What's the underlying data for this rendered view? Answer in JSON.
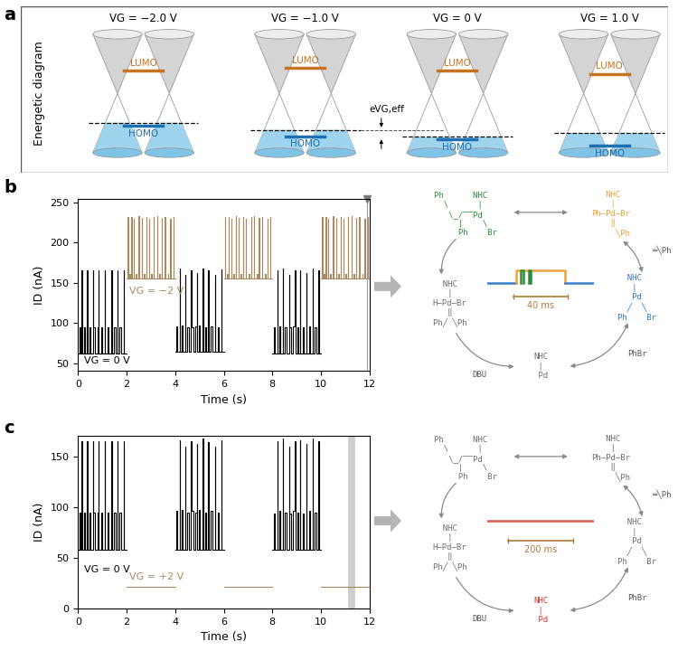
{
  "panel_labels": [
    "a",
    "b",
    "c"
  ],
  "energy_diagram": {
    "ylabel": "Energetic diagram",
    "homo_label": "HOMO",
    "lumo_label": "LUMO",
    "shift_label": "eVG,eff",
    "states": [
      {
        "label": "VG = −2.0 V",
        "fermi_level": -0.37,
        "homo": -0.41,
        "lumo": 0.29
      },
      {
        "label": "VG = −1.0 V",
        "fermi_level": -0.46,
        "homo": -0.54,
        "lumo": 0.32
      },
      {
        "label": "VG = 0 V",
        "fermi_level": -0.55,
        "homo": -0.58,
        "lumo": 0.29
      },
      {
        "label": "VG = 1.0 V",
        "fermi_level": -0.5,
        "homo": -0.66,
        "lumo": 0.25
      }
    ]
  },
  "chart_data": [
    {
      "type": "line",
      "line_style": "steps",
      "xlabel": "Time (s)",
      "ylabel": "ID (nA)",
      "xlim": [
        0,
        12
      ],
      "xticks": [
        0,
        2,
        4,
        6,
        8,
        10,
        12
      ],
      "ylim": [
        40,
        255
      ],
      "yticks": [
        50,
        100,
        150,
        200,
        250
      ],
      "series": [
        {
          "color": "#000000",
          "x": [
            0,
            0.08,
            0.12,
            0.15,
            0.16,
            0.25,
            0.28,
            0.38,
            0.39,
            0.47,
            0.52,
            0.62,
            0.63,
            0.7,
            0.8,
            0.84,
            0.85,
            0.95,
            1.0,
            1.1,
            1.11,
            1.2,
            1.26,
            1.38,
            1.39,
            1.48,
            1.54,
            1.62,
            1.63,
            1.72,
            1.78,
            1.88,
            1.89,
            2.0
          ],
          "values": [
            62,
            95,
            62,
            165,
            62,
            95,
            62,
            165,
            62,
            95,
            62,
            165,
            95,
            62,
            95,
            165,
            62,
            95,
            62,
            165,
            62,
            95,
            62,
            165,
            62,
            95,
            62,
            165,
            62,
            95,
            62,
            165,
            62,
            62
          ]
        },
        {
          "color": "#a98b62",
          "x": [
            2,
            2.05,
            2.06,
            2.12,
            2.15,
            2.2,
            2.21,
            2.3,
            2.31,
            2.38,
            2.42,
            2.5,
            2.51,
            2.62,
            2.63,
            2.7,
            2.74,
            2.8,
            2.81,
            2.92,
            2.93,
            3.02,
            3.06,
            3.12,
            3.13,
            3.25,
            3.26,
            3.35,
            3.39,
            3.45,
            3.46,
            3.58,
            3.59,
            3.7,
            3.73,
            3.8,
            3.81,
            3.92,
            3.93,
            4.0
          ],
          "values": [
            155,
            232,
            155,
            161,
            155,
            232,
            155,
            230,
            155,
            161,
            155,
            233,
            155,
            231,
            155,
            161,
            155,
            232,
            155,
            230,
            155,
            161,
            155,
            232,
            155,
            233,
            155,
            161,
            155,
            231,
            155,
            232,
            155,
            161,
            155,
            230,
            155,
            232,
            155,
            155
          ]
        },
        {
          "color": "#000000",
          "x": [
            4,
            4.06,
            4.1,
            4.18,
            4.19,
            4.27,
            4.31,
            4.4,
            4.41,
            4.5,
            4.55,
            4.66,
            4.67,
            4.74,
            4.83,
            4.9,
            4.91,
            4.98,
            5.03,
            5.14,
            5.15,
            5.23,
            5.28,
            5.36,
            5.37,
            5.47,
            5.52,
            5.64,
            5.65,
            5.74,
            5.8,
            5.9,
            5.91,
            6.0
          ],
          "values": [
            64,
            96,
            64,
            168,
            64,
            97,
            64,
            160,
            64,
            95,
            64,
            166,
            95,
            64,
            96,
            162,
            64,
            97,
            64,
            168,
            64,
            95,
            64,
            165,
            64,
            96,
            64,
            160,
            64,
            95,
            64,
            167,
            64,
            64
          ]
        },
        {
          "color": "#a98b62",
          "x": [
            6,
            6.05,
            6.06,
            6.12,
            6.15,
            6.2,
            6.21,
            6.3,
            6.31,
            6.38,
            6.42,
            6.5,
            6.51,
            6.62,
            6.63,
            6.7,
            6.74,
            6.8,
            6.81,
            6.92,
            6.93,
            7.02,
            7.06,
            7.12,
            7.13,
            7.25,
            7.26,
            7.35,
            7.39,
            7.45,
            7.46,
            7.58,
            7.59,
            7.7,
            7.73,
            7.8,
            7.81,
            7.92,
            7.93,
            8.0
          ],
          "values": [
            155,
            232,
            155,
            161,
            155,
            232,
            155,
            230,
            155,
            161,
            155,
            233,
            155,
            231,
            155,
            161,
            155,
            232,
            155,
            230,
            155,
            161,
            155,
            232,
            155,
            233,
            155,
            161,
            155,
            231,
            155,
            232,
            155,
            161,
            155,
            230,
            155,
            232,
            155,
            155
          ]
        },
        {
          "color": "#000000",
          "x": [
            8,
            8.07,
            8.11,
            8.2,
            8.21,
            8.3,
            8.34,
            8.42,
            8.43,
            8.52,
            8.57,
            8.68,
            8.69,
            8.76,
            8.85,
            8.93,
            8.94,
            9.02,
            9.07,
            9.15,
            9.16,
            9.25,
            9.3,
            9.4,
            9.41,
            9.5,
            9.55,
            9.66,
            9.67,
            9.75,
            9.81,
            9.9,
            9.91,
            10.0
          ],
          "values": [
            62,
            94,
            62,
            165,
            62,
            96,
            62,
            168,
            62,
            95,
            62,
            160,
            94,
            62,
            96,
            165,
            62,
            95,
            62,
            166,
            62,
            94,
            62,
            162,
            62,
            96,
            62,
            168,
            62,
            95,
            62,
            165,
            62,
            62
          ]
        },
        {
          "color": "#a98b62",
          "x": [
            10,
            10.05,
            10.06,
            10.12,
            10.15,
            10.2,
            10.21,
            10.3,
            10.31,
            10.38,
            10.42,
            10.5,
            10.51,
            10.62,
            10.63,
            10.7,
            10.74,
            10.8,
            10.81,
            10.92,
            10.93,
            11.02,
            11.06,
            11.12,
            11.13,
            11.25,
            11.26,
            11.35,
            11.39,
            11.45,
            11.46,
            11.58,
            11.59,
            11.7,
            11.73,
            11.8,
            11.81,
            11.92,
            11.93,
            12.0
          ],
          "values": [
            155,
            232,
            155,
            161,
            155,
            232,
            155,
            230,
            155,
            161,
            155,
            233,
            155,
            231,
            155,
            161,
            155,
            232,
            155,
            230,
            155,
            161,
            155,
            232,
            155,
            233,
            155,
            161,
            155,
            231,
            155,
            232,
            155,
            161,
            155,
            230,
            155,
            232,
            155,
            155
          ]
        }
      ],
      "annotations": [
        {
          "text": "VG = 0 V",
          "color": "#000000"
        },
        {
          "text": "VG = −2 V",
          "color": "#a98b62"
        }
      ],
      "highlight_time": 11.9
    },
    {
      "type": "line",
      "line_style": "steps",
      "xlabel": "Time (s)",
      "ylabel": "ID (nA)",
      "xlim": [
        0,
        12
      ],
      "xticks": [
        0,
        2,
        4,
        6,
        8,
        10,
        12
      ],
      "ylim": [
        0,
        170
      ],
      "yticks": [
        0,
        50,
        100,
        150
      ],
      "series": [
        {
          "color": "#000000",
          "x": [
            0,
            0.08,
            0.12,
            0.15,
            0.16,
            0.25,
            0.28,
            0.38,
            0.39,
            0.47,
            0.52,
            0.62,
            0.63,
            0.7,
            0.8,
            0.84,
            0.85,
            0.95,
            1.0,
            1.1,
            1.11,
            1.2,
            1.26,
            1.38,
            1.39,
            1.48,
            1.54,
            1.62,
            1.63,
            1.72,
            1.78,
            1.88,
            1.89,
            2.0
          ],
          "values": [
            58,
            95,
            58,
            165,
            58,
            95,
            58,
            165,
            58,
            95,
            58,
            165,
            95,
            58,
            95,
            165,
            58,
            95,
            58,
            165,
            58,
            95,
            58,
            165,
            58,
            95,
            58,
            165,
            58,
            95,
            58,
            165,
            58,
            58
          ]
        },
        {
          "color": "#a98b62",
          "x": [
            2,
            4
          ],
          "values": [
            22,
            22
          ]
        },
        {
          "color": "#000000",
          "x": [
            4,
            4.06,
            4.1,
            4.18,
            4.19,
            4.27,
            4.31,
            4.4,
            4.41,
            4.5,
            4.55,
            4.66,
            4.67,
            4.74,
            4.83,
            4.9,
            4.91,
            4.98,
            5.03,
            5.14,
            5.15,
            5.23,
            5.28,
            5.36,
            5.37,
            5.47,
            5.52,
            5.64,
            5.65,
            5.74,
            5.8,
            5.9,
            5.91,
            6.0
          ],
          "values": [
            58,
            96,
            58,
            166,
            58,
            97,
            58,
            160,
            58,
            95,
            58,
            165,
            96,
            58,
            95,
            162,
            58,
            97,
            58,
            168,
            58,
            95,
            58,
            164,
            58,
            96,
            58,
            160,
            58,
            95,
            58,
            166,
            58,
            58
          ]
        },
        {
          "color": "#a98b62",
          "x": [
            6,
            8
          ],
          "values": [
            22,
            22
          ]
        },
        {
          "color": "#000000",
          "x": [
            8,
            8.07,
            8.11,
            8.2,
            8.21,
            8.3,
            8.34,
            8.42,
            8.43,
            8.52,
            8.57,
            8.68,
            8.69,
            8.76,
            8.85,
            8.93,
            8.94,
            9.02,
            9.07,
            9.15,
            9.16,
            9.25,
            9.3,
            9.4,
            9.41,
            9.5,
            9.55,
            9.66,
            9.67,
            9.75,
            9.81,
            9.9,
            9.91,
            10.0
          ],
          "values": [
            58,
            94,
            58,
            165,
            58,
            96,
            58,
            168,
            58,
            95,
            58,
            160,
            94,
            58,
            96,
            165,
            58,
            95,
            58,
            166,
            58,
            94,
            58,
            162,
            58,
            96,
            58,
            168,
            58,
            95,
            58,
            165,
            58,
            58
          ]
        },
        {
          "color": "#a98b62",
          "x": [
            10,
            12
          ],
          "values": [
            22,
            22
          ]
        }
      ],
      "annotations": [
        {
          "text": "VG = 0 V",
          "color": "#000000"
        },
        {
          "text": "VG = +2 V",
          "color": "#a98b62"
        }
      ],
      "highlight_range": [
        11.1,
        11.4
      ]
    }
  ],
  "cycles": [
    {
      "species": [
        {
          "text": "Ph      NHC\n  \\      |\n   \\_/‾‾Pd\n     |    \\\n     Ph    Br",
          "color": "#2e8b3a"
        },
        {
          "text": "   NHC\n    |\nPh—Pd—Br\n    ‖\n     ╲Ph",
          "color": "#e8a33a"
        },
        {
          "text": "  NHC\n   |\n   Pd\n  ╱  ╲\nPh    Br",
          "color": "#2f74c0"
        },
        {
          "text": "NHC\n |\n Pd",
          "color": "#6e6e6e"
        },
        {
          "text": "  NHC\n   |\nH—Pd—Br\n   ‖\nPh╱ ╲Ph",
          "color": "#6e6e6e"
        }
      ],
      "reagents": [
        "═╲Ph",
        "DBU",
        "PhBr"
      ],
      "inset": {
        "xlim": [
          0,
          80
        ],
        "ylim": [
          -0.5,
          1.5
        ],
        "series": [
          {
            "color": "#3a7dc9",
            "x": [
              0,
              22
            ],
            "values": [
              0,
              0
            ]
          },
          {
            "color": "#e8a33a",
            "x": [
              22,
              22,
              58,
              58
            ],
            "values": [
              0,
              1,
              1,
              0
            ]
          },
          {
            "color": "#2e8b3a",
            "x": [
              25,
              25,
              27,
              27
            ],
            "values": [
              0,
              1,
              1,
              0
            ]
          },
          {
            "color": "#2e8b3a",
            "x": [
              31,
              31,
              32.5,
              32.5
            ],
            "values": [
              0,
              1,
              1,
              0
            ]
          },
          {
            "color": "#3a7dc9",
            "x": [
              58,
              80
            ],
            "values": [
              0,
              0
            ]
          }
        ],
        "scale_bar": {
          "value": 40,
          "label": "40 ms"
        }
      }
    },
    {
      "species": [
        {
          "text": "Ph      NHC\n  \\      |\n   \\_/‾‾Pd\n     |    \\\n     Ph    Br",
          "color": "#6e6e6e"
        },
        {
          "text": "   NHC\n    |\nPh—Pd—Br\n    ‖\n     ╲Ph",
          "color": "#6e6e6e"
        },
        {
          "text": "  NHC\n   |\n   Pd\n  ╱  ╲\nPh    Br",
          "color": "#6e6e6e"
        },
        {
          "text": "NHC\n |\n Pd",
          "color": "#d9342b"
        },
        {
          "text": "  NHC\n   |\nH—Pd—Br\n   ‖\nPh╱ ╲Ph",
          "color": "#6e6e6e"
        }
      ],
      "reagents": [
        "═╲Ph",
        "DBU",
        "PhBr"
      ],
      "inset": {
        "xlim": [
          0,
          330
        ],
        "ylim": [
          -1,
          1
        ],
        "series": [
          {
            "color": "#e05a4f",
            "x": [
              0,
              330
            ],
            "values": [
              0,
              0
            ]
          }
        ],
        "scale_bar": {
          "value": 200,
          "label": "200 ms"
        }
      }
    }
  ]
}
